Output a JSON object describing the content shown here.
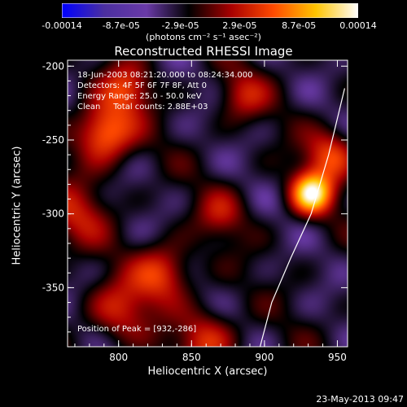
{
  "chart_data": {
    "type": "heatmap",
    "title": "Reconstructed RHESSI Image",
    "xlabel": "Heliocentric X (arcsec)",
    "ylabel": "Heliocentric Y (arcsec)",
    "xlim": [
      765,
      957
    ],
    "ylim": [
      -390,
      -196
    ],
    "x_ticks": [
      "800",
      "850",
      "900",
      "950"
    ],
    "y_ticks": [
      "-200",
      "-250",
      "-300",
      "-350"
    ],
    "colorbar": {
      "min": -0.00014,
      "max": 0.00014,
      "tick_labels": [
        "-0.00014",
        "-8.7e-05",
        "-2.9e-05",
        "2.9e-05",
        "8.7e-05",
        "0.00014"
      ],
      "units_label": "(photons cm⁻² s⁻¹ asec⁻²)"
    },
    "annotations": [
      "18-Jun-2003 08:21:20.000 to 08:24:34.000",
      "Detectors: 4F 5F 6F 7F 8F, Att 0",
      "Energy Range: 25.0 - 50.0 keV",
      "Clean     Total counts: 2.88E+03"
    ],
    "peak_label": "Position of Peak = [932,-286]",
    "peak": {
      "x": 932,
      "y": -286
    },
    "sources": [
      {
        "x": 932,
        "y": -286,
        "strength": 1.0,
        "sigma": 10
      },
      {
        "x": 945,
        "y": -260,
        "strength": 0.5,
        "sigma": 12
      },
      {
        "x": 790,
        "y": -245,
        "strength": 0.7,
        "sigma": 14
      },
      {
        "x": 805,
        "y": -215,
        "strength": 0.45,
        "sigma": 12
      },
      {
        "x": 830,
        "y": -340,
        "strength": 0.5,
        "sigma": 14
      },
      {
        "x": 800,
        "y": -365,
        "strength": 0.4,
        "sigma": 15
      },
      {
        "x": 860,
        "y": -385,
        "strength": 0.45,
        "sigma": 14
      },
      {
        "x": 885,
        "y": -220,
        "strength": 0.35,
        "sigma": 12
      },
      {
        "x": 870,
        "y": -300,
        "strength": 0.3,
        "sigma": 12
      },
      {
        "x": 770,
        "y": -300,
        "strength": 0.35,
        "sigma": 16
      }
    ],
    "limb_curve": {
      "x": [
        897,
        905,
        918,
        932,
        944,
        955
      ],
      "y": [
        -390,
        -360,
        -330,
        -300,
        -260,
        -215
      ]
    },
    "timestamp": "23-May-2013 09:47"
  },
  "colors": {
    "background": "#000000",
    "text": "#ffffff",
    "colormap": [
      "#0000ff",
      "#4b2fa0",
      "#6a3aa8",
      "#000000",
      "#a80000",
      "#ff4a00",
      "#ffc400",
      "#ffffff"
    ]
  }
}
